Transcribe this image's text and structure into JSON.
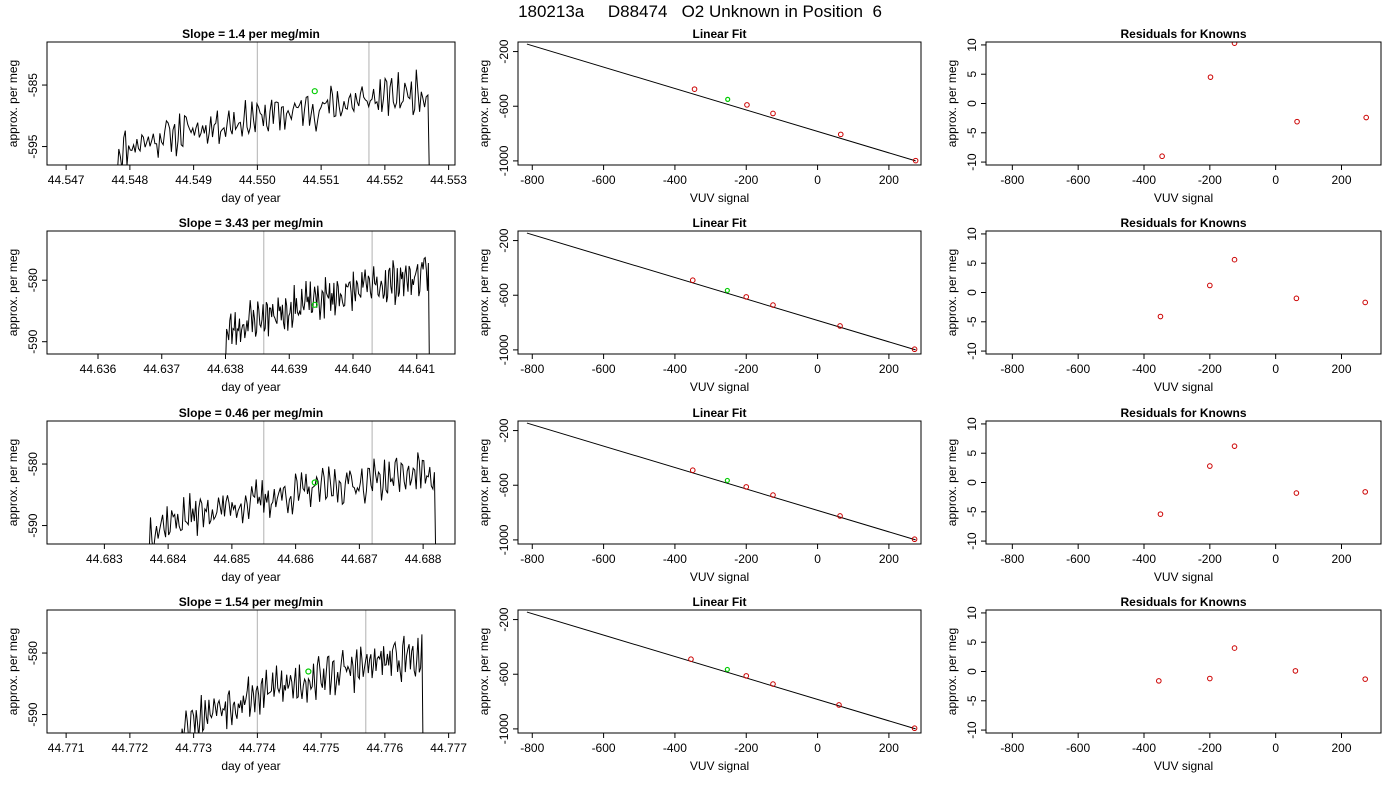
{
  "page_title": "180213a     D88474   O2 Unknown in Position  6",
  "colors": {
    "trace": "#000000",
    "vline": "#bebebe",
    "marker_green": "#00cc00",
    "marker_red": "#cc0000"
  },
  "chart_data": [
    {
      "id": "r0-ts",
      "type": "line",
      "title": "Slope =  1.4  per meg/min",
      "xlabel": "day of year",
      "ylabel": "approx. per meg",
      "xlim": [
        44.5467,
        44.5531
      ],
      "ylim": [
        -598,
        -578
      ],
      "xticks": [
        "44.547",
        "44.548",
        "44.549",
        "44.550",
        "44.551",
        "44.552",
        "44.553"
      ],
      "yticks": [
        "-585",
        "-595"
      ],
      "start": 44.5478,
      "end": 44.5527,
      "level_start": -596,
      "level_end": -586,
      "noise": 2.4,
      "drop_end": -598,
      "vlines": [
        44.55,
        44.55175
      ],
      "marker": {
        "x": 44.5509,
        "y": -586
      },
      "seed": 11
    },
    {
      "id": "r0-fit",
      "type": "scatter",
      "title": "Linear Fit",
      "xlabel": "VUV signal",
      "ylabel": "approx. per meg",
      "xlim": [
        -840,
        290
      ],
      "ylim": [
        -1030,
        -130
      ],
      "xticks": [
        "-800",
        "-600",
        "-400",
        "-200",
        "0",
        "200"
      ],
      "yticks": [
        "-200",
        "-600",
        "-1000"
      ],
      "line": {
        "x": [
          -815,
          275
        ],
        "y": [
          -145,
          -1000
        ]
      },
      "points": [
        {
          "x": -345,
          "y": -475
        },
        {
          "x": -198,
          "y": -590
        },
        {
          "x": -125,
          "y": -653
        },
        {
          "x": 65,
          "y": -806
        },
        {
          "x": 275,
          "y": -998
        }
      ],
      "green": {
        "x": -252,
        "y": -550
      }
    },
    {
      "id": "r0-res",
      "type": "scatter",
      "title": "Residuals for Knowns",
      "xlabel": "VUV signal",
      "ylabel": "approx. per meg",
      "xlim": [
        -880,
        320
      ],
      "ylim": [
        -10.5,
        10.5
      ],
      "xticks": [
        "-800",
        "-600",
        "-400",
        "-200",
        "0",
        "200"
      ],
      "yticks": [
        "10",
        "5",
        "0",
        "-5",
        "-10"
      ],
      "points": [
        {
          "x": -345,
          "y": -9
        },
        {
          "x": -198,
          "y": 4.5
        },
        {
          "x": -125,
          "y": 10.3
        },
        {
          "x": 65,
          "y": -3.1
        },
        {
          "x": 275,
          "y": -2.4
        }
      ]
    },
    {
      "id": "r1-ts",
      "type": "line",
      "title": "Slope =  3.43  per meg/min",
      "xlabel": "day of year",
      "ylabel": "approx. per meg",
      "xlim": [
        44.6352,
        44.6416
      ],
      "ylim": [
        -592,
        -572
      ],
      "xticks": [
        "44.636",
        "44.637",
        "44.638",
        "44.639",
        "44.640",
        "44.641"
      ],
      "yticks": [
        "-580",
        "-590"
      ],
      "start": 44.638,
      "end": 44.6412,
      "level_start": -589,
      "level_end": -579,
      "noise": 2.5,
      "drop_end": -593,
      "vlines": [
        44.6386,
        44.6403
      ],
      "marker": {
        "x": 44.6394,
        "y": -584
      },
      "seed": 23
    },
    {
      "id": "r1-fit",
      "type": "scatter",
      "title": "Linear Fit",
      "xlabel": "VUV signal",
      "ylabel": "approx. per meg",
      "xlim": [
        -840,
        290
      ],
      "ylim": [
        -1030,
        -130
      ],
      "xticks": [
        "-800",
        "-600",
        "-400",
        "-200",
        "0",
        "200"
      ],
      "yticks": [
        "-200",
        "-600",
        "-1000"
      ],
      "line": {
        "x": [
          -815,
          275
        ],
        "y": [
          -145,
          -1000
        ]
      },
      "points": [
        {
          "x": -350,
          "y": -490
        },
        {
          "x": -200,
          "y": -612
        },
        {
          "x": -125,
          "y": -672
        },
        {
          "x": 63,
          "y": -825
        },
        {
          "x": 272,
          "y": -995
        }
      ],
      "green": {
        "x": -253,
        "y": -565
      }
    },
    {
      "id": "r1-res",
      "type": "scatter",
      "title": "Residuals for Knowns",
      "xlabel": "VUV signal",
      "ylabel": "approx. per meg",
      "xlim": [
        -880,
        320
      ],
      "ylim": [
        -10.5,
        10.5
      ],
      "xticks": [
        "-800",
        "-600",
        "-400",
        "-200",
        "0",
        "200"
      ],
      "yticks": [
        "10",
        "5",
        "0",
        "-5",
        "-10"
      ],
      "points": [
        {
          "x": -350,
          "y": -4.1
        },
        {
          "x": -200,
          "y": 1.2
        },
        {
          "x": -125,
          "y": 5.6
        },
        {
          "x": 63,
          "y": -1
        },
        {
          "x": 272,
          "y": -1.7
        }
      ]
    },
    {
      "id": "r2-ts",
      "type": "line",
      "title": "Slope =  0.46  per meg/min",
      "xlabel": "day of year",
      "ylabel": "approx. per meg",
      "xlim": [
        44.6821,
        44.6885
      ],
      "ylim": [
        -593,
        -573
      ],
      "xticks": [
        "44.683",
        "44.684",
        "44.685",
        "44.686",
        "44.687",
        "44.688"
      ],
      "yticks": [
        "-580",
        "-590"
      ],
      "start": 44.6837,
      "end": 44.6882,
      "level_start": -591,
      "level_end": -581,
      "noise": 2.4,
      "drop_end": -594,
      "vlines": [
        44.6855,
        44.6872
      ],
      "marker": {
        "x": 44.6863,
        "y": -583
      },
      "seed": 37
    },
    {
      "id": "r2-fit",
      "type": "scatter",
      "title": "Linear Fit",
      "xlabel": "VUV signal",
      "ylabel": "approx. per meg",
      "xlim": [
        -840,
        290
      ],
      "ylim": [
        -1030,
        -130
      ],
      "xticks": [
        "-800",
        "-600",
        "-400",
        "-200",
        "0",
        "200"
      ],
      "yticks": [
        "-200",
        "-600",
        "-1000"
      ],
      "line": {
        "x": [
          -815,
          275
        ],
        "y": [
          -145,
          -1000
        ]
      },
      "points": [
        {
          "x": -350,
          "y": -490
        },
        {
          "x": -200,
          "y": -612
        },
        {
          "x": -125,
          "y": -672
        },
        {
          "x": 63,
          "y": -825
        },
        {
          "x": 272,
          "y": -995
        }
      ],
      "green": {
        "x": -253,
        "y": -565
      }
    },
    {
      "id": "r2-res",
      "type": "scatter",
      "title": "Residuals for Knowns",
      "xlabel": "VUV signal",
      "ylabel": "approx. per meg",
      "xlim": [
        -880,
        320
      ],
      "ylim": [
        -10.5,
        10.5
      ],
      "xticks": [
        "-800",
        "-600",
        "-400",
        "-200",
        "0",
        "200"
      ],
      "yticks": [
        "10",
        "5",
        "0",
        "-5",
        "-10"
      ],
      "points": [
        {
          "x": -350,
          "y": -5.4
        },
        {
          "x": -200,
          "y": 2.8
        },
        {
          "x": -125,
          "y": 6.2
        },
        {
          "x": 63,
          "y": -1.8
        },
        {
          "x": 272,
          "y": -1.6
        }
      ]
    },
    {
      "id": "r3-ts",
      "type": "line",
      "title": "Slope =  1.54  per meg/min",
      "xlabel": "day of year",
      "ylabel": "approx. per meg",
      "xlim": [
        44.7707,
        44.7771
      ],
      "ylim": [
        -593,
        -573
      ],
      "xticks": [
        "44.771",
        "44.772",
        "44.773",
        "44.774",
        "44.775",
        "44.776",
        "44.777"
      ],
      "yticks": [
        "-580",
        "-590"
      ],
      "start": 44.7728,
      "end": 44.7766,
      "level_start": -592,
      "level_end": -580,
      "noise": 2.6,
      "drop_end": -594,
      "vlines": [
        44.774,
        44.7757
      ],
      "marker": {
        "x": 44.7748,
        "y": -583
      },
      "seed": 53
    },
    {
      "id": "r3-fit",
      "type": "scatter",
      "title": "Linear Fit",
      "xlabel": "VUV signal",
      "ylabel": "approx. per meg",
      "xlim": [
        -840,
        290
      ],
      "ylim": [
        -1030,
        -130
      ],
      "xticks": [
        "-800",
        "-600",
        "-400",
        "-200",
        "0",
        "200"
      ],
      "yticks": [
        "-200",
        "-600",
        "-1000"
      ],
      "line": {
        "x": [
          -815,
          275
        ],
        "y": [
          -145,
          -1000
        ]
      },
      "points": [
        {
          "x": -355,
          "y": -490
        },
        {
          "x": -200,
          "y": -612
        },
        {
          "x": -125,
          "y": -672
        },
        {
          "x": 60,
          "y": -825
        },
        {
          "x": 272,
          "y": -995
        }
      ],
      "green": {
        "x": -253,
        "y": -565
      }
    },
    {
      "id": "r3-res",
      "type": "scatter",
      "title": "Residuals for Knowns",
      "xlabel": "VUV signal",
      "ylabel": "approx. per meg",
      "xlim": [
        -880,
        320
      ],
      "ylim": [
        -10.5,
        10.5
      ],
      "xticks": [
        "-800",
        "-600",
        "-400",
        "-200",
        "0",
        "200"
      ],
      "yticks": [
        "10",
        "5",
        "0",
        "-5",
        "-10"
      ],
      "points": [
        {
          "x": -355,
          "y": -1.6
        },
        {
          "x": -200,
          "y": -1.2
        },
        {
          "x": -125,
          "y": 4
        },
        {
          "x": 60,
          "y": 0.1
        },
        {
          "x": 272,
          "y": -1.3
        }
      ]
    }
  ]
}
